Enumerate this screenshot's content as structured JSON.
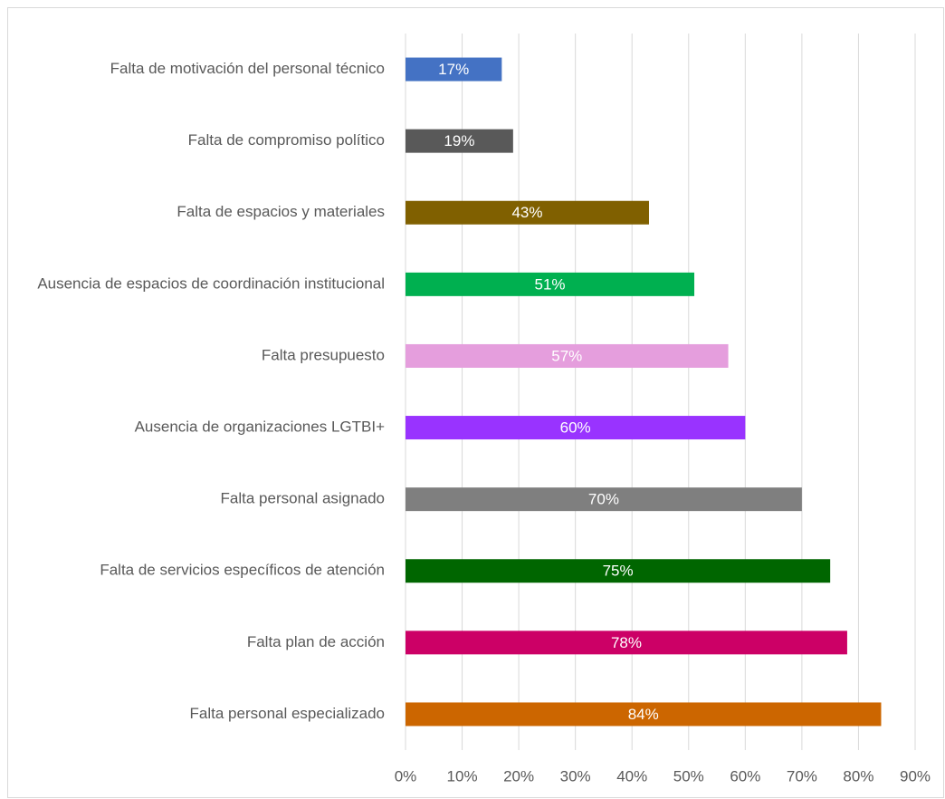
{
  "chart_data": {
    "type": "barh",
    "categories": [
      "Falta de motivación del personal técnico",
      "Falta de compromiso político",
      "Falta de espacios y materiales",
      "Ausencia de espacios de coordinación institucional",
      "Falta presupuesto",
      "Ausencia de organizaciones LGTBI+",
      "Falta personal asignado",
      "Falta de servicios específicos de atención",
      "Falta plan de acción",
      "Falta personal especializado"
    ],
    "values": [
      17,
      19,
      43,
      51,
      57,
      60,
      70,
      75,
      78,
      84
    ],
    "value_labels": [
      "17%",
      "19%",
      "43%",
      "51%",
      "57%",
      "60%",
      "70%",
      "75%",
      "78%",
      "84%"
    ],
    "colors": [
      "#4472c4",
      "#595959",
      "#806000",
      "#00b050",
      "#e59edd",
      "#9933ff",
      "#7f7f7f",
      "#006600",
      "#cc0066",
      "#cc6600"
    ],
    "xlim": [
      0,
      90
    ],
    "xticks": [
      {
        "value": 0,
        "label": "0%"
      },
      {
        "value": 10,
        "label": "10%"
      },
      {
        "value": 20,
        "label": "20%"
      },
      {
        "value": 30,
        "label": "30%"
      },
      {
        "value": 40,
        "label": "40%"
      },
      {
        "value": 50,
        "label": "50%"
      },
      {
        "value": 60,
        "label": "60%"
      },
      {
        "value": 70,
        "label": "70%"
      },
      {
        "value": 80,
        "label": "80%"
      },
      {
        "value": 90,
        "label": "90%"
      }
    ],
    "grid": true
  }
}
